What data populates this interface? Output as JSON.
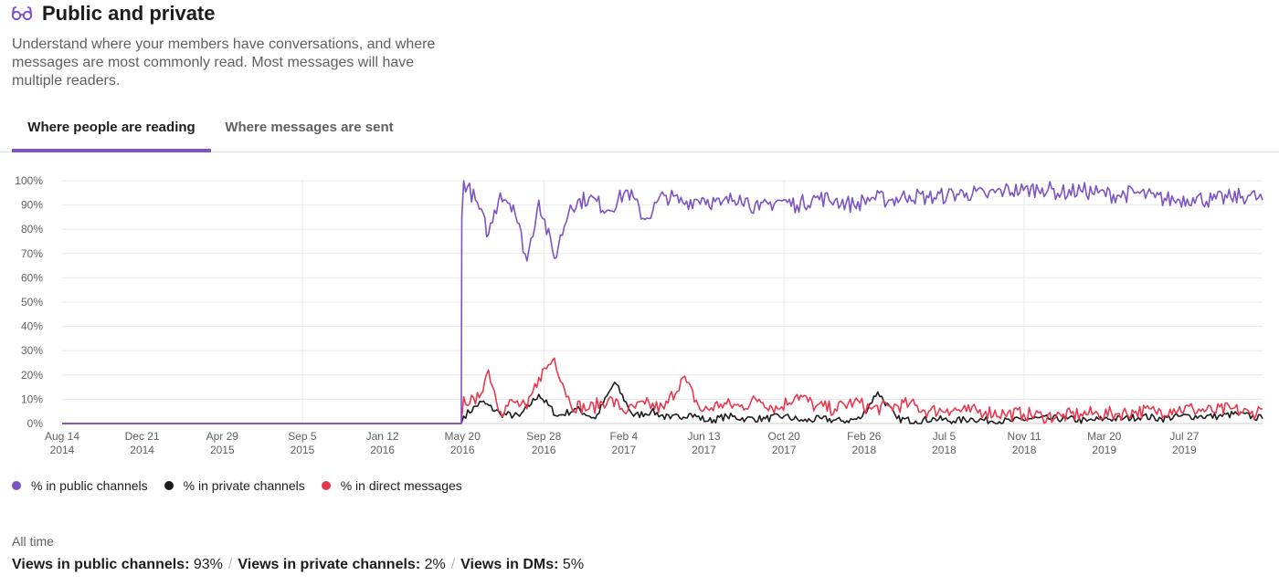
{
  "header": {
    "title": "Public and private",
    "icon": "glasses-icon",
    "description": "Understand where your members have conversations, and where messages are most commonly read. Most messages will have multiple readers."
  },
  "tabs": [
    {
      "label": "Where people are reading",
      "active": true
    },
    {
      "label": "Where messages are sent",
      "active": false
    }
  ],
  "colors": {
    "public": "#7c53c3",
    "private": "#1d1c1d",
    "dm": "#e8384f",
    "accent": "#7c53c3"
  },
  "chart_data": {
    "type": "line",
    "title": "",
    "xlabel": "",
    "ylabel": "",
    "ylim": [
      0,
      100
    ],
    "y_ticks": [
      "0%",
      "10%",
      "20%",
      "30%",
      "40%",
      "50%",
      "60%",
      "70%",
      "80%",
      "90%",
      "100%"
    ],
    "x_ticks": [
      {
        "date": "2014-08-14",
        "label": [
          "Aug 14",
          "2014"
        ]
      },
      {
        "date": "2014-12-21",
        "label": [
          "Dec 21",
          "2014"
        ]
      },
      {
        "date": "2015-04-29",
        "label": [
          "Apr 29",
          "2015"
        ]
      },
      {
        "date": "2015-09-05",
        "label": [
          "Sep 5",
          "2015"
        ]
      },
      {
        "date": "2016-01-12",
        "label": [
          "Jan 12",
          "2016"
        ]
      },
      {
        "date": "2016-05-20",
        "label": [
          "May 20",
          "2016"
        ]
      },
      {
        "date": "2016-09-28",
        "label": [
          "Sep 28",
          "2016"
        ]
      },
      {
        "date": "2017-02-04",
        "label": [
          "Feb 4",
          "2017"
        ]
      },
      {
        "date": "2017-06-13",
        "label": [
          "Jun 13",
          "2017"
        ]
      },
      {
        "date": "2017-10-20",
        "label": [
          "Oct 20",
          "2017"
        ]
      },
      {
        "date": "2018-02-26",
        "label": [
          "Feb 26",
          "2018"
        ]
      },
      {
        "date": "2018-07-05",
        "label": [
          "Jul 5",
          "2018"
        ]
      },
      {
        "date": "2018-11-11",
        "label": [
          "Nov 11",
          "2018"
        ]
      },
      {
        "date": "2019-03-20",
        "label": [
          "Mar 20",
          "2019"
        ]
      },
      {
        "date": "2019-07-27",
        "label": [
          "Jul 27",
          "2019"
        ]
      }
    ],
    "xlim": [
      "2014-08-14",
      "2019-11-30"
    ],
    "grid": true,
    "legend_position": "bottom-left",
    "series": [
      {
        "name": "% in public channels",
        "color": "#7c53c3",
        "x": [
          "2014-08-14",
          "2016-05-18",
          "2016-05-19",
          "2016-05-22",
          "2016-06-10",
          "2016-07-01",
          "2016-07-20",
          "2016-08-10",
          "2016-09-01",
          "2016-09-20",
          "2016-10-15",
          "2016-11-10",
          "2016-12-10",
          "2017-01-10",
          "2017-02-10",
          "2017-03-10",
          "2017-04-10",
          "2017-05-10",
          "2017-06-10",
          "2017-07-10",
          "2017-08-10",
          "2017-09-10",
          "2017-10-10",
          "2017-11-10",
          "2017-12-10",
          "2018-01-10",
          "2018-02-10",
          "2018-03-10",
          "2018-04-10",
          "2018-05-10",
          "2018-06-10",
          "2018-07-10",
          "2018-08-10",
          "2018-09-10",
          "2018-10-10",
          "2018-11-10",
          "2018-12-10",
          "2019-01-10",
          "2019-02-10",
          "2019-03-10",
          "2019-04-10",
          "2019-05-10",
          "2019-06-10",
          "2019-07-10",
          "2019-08-10",
          "2019-09-10",
          "2019-10-10",
          "2019-11-10",
          "2019-11-30"
        ],
        "y": [
          0,
          0,
          85,
          100,
          92,
          78,
          95,
          90,
          67,
          92,
          68,
          90,
          93,
          88,
          96,
          84,
          94,
          91,
          93,
          90,
          94,
          88,
          92,
          90,
          93,
          92,
          90,
          93,
          92,
          94,
          93,
          94,
          95,
          94,
          96,
          96,
          97,
          95,
          96,
          95,
          94,
          95,
          93,
          92,
          93,
          92,
          93,
          94,
          92
        ]
      },
      {
        "name": "% in private channels",
        "color": "#1d1c1d",
        "x": [
          "2014-08-14",
          "2016-05-18",
          "2016-05-22",
          "2016-06-20",
          "2016-07-20",
          "2016-08-20",
          "2016-09-20",
          "2016-10-20",
          "2016-11-20",
          "2016-12-20",
          "2017-01-20",
          "2017-02-20",
          "2017-03-20",
          "2017-04-20",
          "2017-05-20",
          "2017-06-20",
          "2017-07-20",
          "2017-08-20",
          "2017-09-20",
          "2017-10-20",
          "2017-11-20",
          "2017-12-20",
          "2018-01-20",
          "2018-02-20",
          "2018-03-20",
          "2018-04-20",
          "2018-05-20",
          "2018-06-20",
          "2018-07-20",
          "2018-08-20",
          "2018-09-20",
          "2018-10-20",
          "2018-11-20",
          "2018-12-20",
          "2019-01-20",
          "2019-02-20",
          "2019-03-20",
          "2019-04-20",
          "2019-05-20",
          "2019-06-20",
          "2019-07-20",
          "2019-08-20",
          "2019-09-20",
          "2019-10-20",
          "2019-11-30"
        ],
        "y": [
          0,
          0,
          3,
          9,
          4,
          3,
          12,
          3,
          6,
          2,
          17,
          3,
          5,
          2,
          4,
          1,
          3,
          2,
          2,
          3,
          1,
          2,
          1,
          2,
          13,
          2,
          1,
          2,
          1,
          2,
          1,
          1,
          2,
          2,
          2,
          1,
          2,
          2,
          3,
          2,
          3,
          3,
          3,
          4,
          2
        ]
      },
      {
        "name": "% in direct messages",
        "color": "#e8384f",
        "x": [
          "2014-08-14",
          "2016-05-18",
          "2016-05-22",
          "2016-06-10",
          "2016-07-01",
          "2016-07-20",
          "2016-08-10",
          "2016-09-01",
          "2016-09-20",
          "2016-10-15",
          "2016-11-10",
          "2016-12-10",
          "2017-01-10",
          "2017-02-10",
          "2017-03-10",
          "2017-04-10",
          "2017-05-10",
          "2017-06-10",
          "2017-07-10",
          "2017-08-10",
          "2017-09-10",
          "2017-10-10",
          "2017-11-10",
          "2017-12-10",
          "2018-01-10",
          "2018-02-10",
          "2018-03-10",
          "2018-04-10",
          "2018-05-10",
          "2018-06-10",
          "2018-07-10",
          "2018-08-10",
          "2018-09-10",
          "2018-10-10",
          "2018-11-10",
          "2018-12-10",
          "2019-01-10",
          "2019-02-10",
          "2019-03-10",
          "2019-04-10",
          "2019-05-10",
          "2019-06-10",
          "2019-07-10",
          "2019-08-10",
          "2019-09-10",
          "2019-10-10",
          "2019-11-10",
          "2019-11-30"
        ],
        "y": [
          0,
          0,
          11,
          8,
          22,
          5,
          9,
          6,
          19,
          27,
          8,
          6,
          10,
          5,
          8,
          6,
          19,
          5,
          8,
          7,
          10,
          6,
          12,
          7,
          6,
          9,
          6,
          7,
          8,
          5,
          6,
          5,
          5,
          4,
          4,
          3,
          3,
          4,
          4,
          4,
          5,
          5,
          6,
          6,
          5,
          6,
          4,
          6
        ]
      }
    ]
  },
  "legend": [
    {
      "label": "% in public channels",
      "color": "#7c53c3"
    },
    {
      "label": "% in private channels",
      "color": "#1d1c1d"
    },
    {
      "label": "% in direct messages",
      "color": "#e8384f"
    }
  ],
  "summary": {
    "period": "All time",
    "public_label": "Views in public channels:",
    "public_value": "93%",
    "private_label": "Views in private channels:",
    "private_value": "2%",
    "dm_label": "Views in DMs:",
    "dm_value": "5%"
  }
}
